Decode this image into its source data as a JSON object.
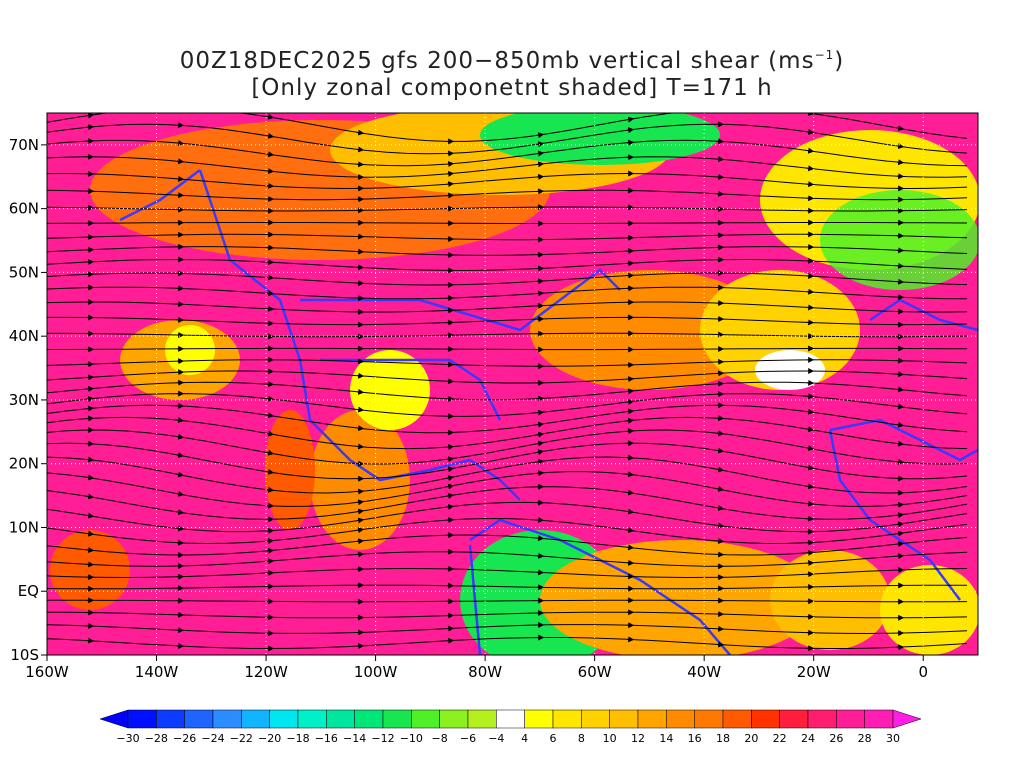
{
  "title": {
    "line1_main": "00Z18DEC2025 gfs 200−850mb vertical shear (ms",
    "line1_sup": "−1",
    "line1_end": ")",
    "line2": "[Only zonal componetnt shaded] T=171 h"
  },
  "map": {
    "lon_range": [
      -160,
      10
    ],
    "lat_range": [
      -10,
      75
    ],
    "lat_labels": [
      {
        "lat": 70,
        "text": "70N"
      },
      {
        "lat": 60,
        "text": "60N"
      },
      {
        "lat": 50,
        "text": "50N"
      },
      {
        "lat": 40,
        "text": "40N"
      },
      {
        "lat": 30,
        "text": "30N"
      },
      {
        "lat": 20,
        "text": "20N"
      },
      {
        "lat": 10,
        "text": "10N"
      },
      {
        "lat": 0,
        "text": "EQ"
      },
      {
        "lat": -10,
        "text": "10S"
      }
    ],
    "lon_labels": [
      {
        "lon": -160,
        "text": "160W"
      },
      {
        "lon": -140,
        "text": "140W"
      },
      {
        "lon": -120,
        "text": "120W"
      },
      {
        "lon": -100,
        "text": "100W"
      },
      {
        "lon": -80,
        "text": "80W"
      },
      {
        "lon": -60,
        "text": "60W"
      },
      {
        "lon": -40,
        "text": "40W"
      },
      {
        "lon": -20,
        "text": "20W"
      },
      {
        "lon": 0,
        "text": "0"
      }
    ],
    "coastline_color": "#3a3aff",
    "contour_color": "#9b1fa8",
    "streamline_color": "#000000"
  },
  "colorbar": {
    "labels": [
      "−30",
      "−28",
      "−26",
      "−24",
      "−22",
      "−20",
      "−18",
      "−16",
      "−14",
      "−12",
      "−10",
      "−8",
      "−6",
      "−4",
      "4",
      "6",
      "8",
      "10",
      "12",
      "14",
      "16",
      "18",
      "20",
      "22",
      "24",
      "26",
      "28",
      "30"
    ],
    "colors": [
      "#0010ff",
      "#0c3cff",
      "#1e64ff",
      "#2d8cff",
      "#10b4ff",
      "#00e6f0",
      "#00f0c8",
      "#00e6a0",
      "#00e678",
      "#18e650",
      "#50f028",
      "#8cf01e",
      "#b4f01e",
      "#ffffff",
      "#ffff00",
      "#ffe600",
      "#ffd200",
      "#ffbe00",
      "#ffa500",
      "#ff8c00",
      "#ff7800",
      "#ff5a00",
      "#ff3200",
      "#ff1e3c",
      "#ff1e6e",
      "#ff1e96",
      "#ff1eb4"
    ]
  }
}
